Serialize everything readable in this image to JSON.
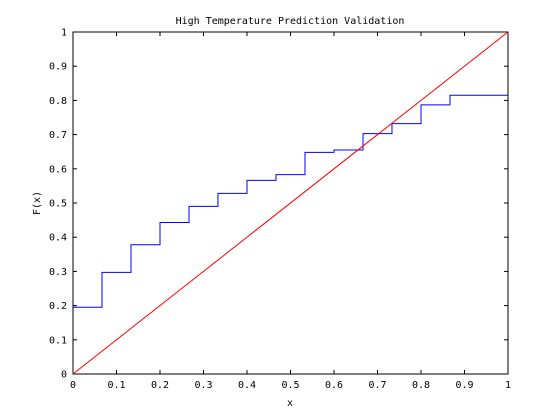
{
  "chart_data": {
    "type": "line",
    "title": "High Temperature Prediction Validation",
    "xlabel": "x",
    "ylabel": "F(x)",
    "xlim": [
      0,
      1
    ],
    "ylim": [
      0,
      1
    ],
    "x_ticks": [
      "0",
      "0.1",
      "0.2",
      "0.3",
      "0.4",
      "0.5",
      "0.6",
      "0.7",
      "0.8",
      "0.9",
      "1"
    ],
    "y_ticks": [
      "0",
      "0.1",
      "0.2",
      "0.3",
      "0.4",
      "0.5",
      "0.6",
      "0.7",
      "0.8",
      "0.9",
      "1"
    ],
    "grid": false,
    "series": [
      {
        "style": "step",
        "color": "#0000ff",
        "x": [
          0,
          0.0667,
          0.1333,
          0.2,
          0.2667,
          0.3333,
          0.4,
          0.4667,
          0.5333,
          0.6,
          0.6667,
          0.7333,
          0.8,
          0.8667,
          1.0
        ],
        "y": [
          0.195,
          0.297,
          0.378,
          0.443,
          0.49,
          0.528,
          0.566,
          0.583,
          0.648,
          0.655,
          0.703,
          0.732,
          0.787,
          0.815,
          0.815
        ]
      },
      {
        "style": "line",
        "color": "#ff0000",
        "x": [
          0,
          1
        ],
        "y": [
          0,
          1
        ]
      }
    ]
  }
}
